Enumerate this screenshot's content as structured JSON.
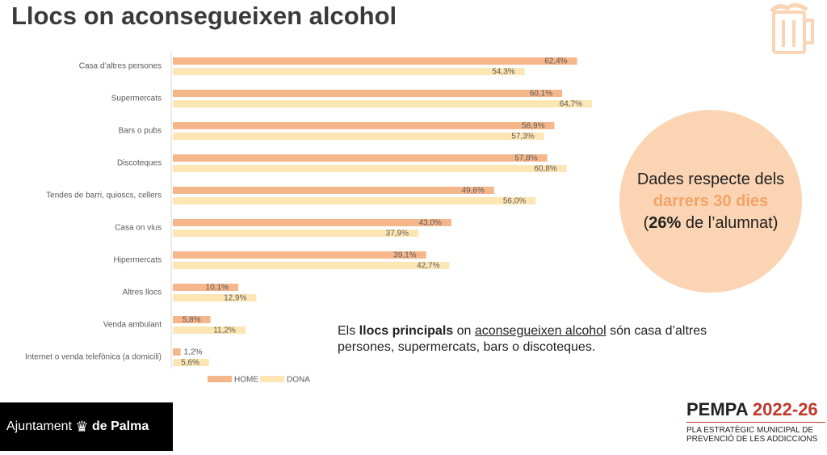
{
  "title": "Llocs on aconsegueixen alcohol",
  "chart_data": {
    "type": "hbar",
    "categories": [
      "Casa d’altres persones",
      "Supermercats",
      "Bars o pubs",
      "Discoteques",
      "Tendes de barri, quioscs, cellers",
      "Casa on vius",
      "Hipermercats",
      "Altres llocs",
      "Venda ambulant",
      "Internet o venda telefònica (a domicili)"
    ],
    "series": [
      {
        "name": "HOME",
        "color": "#f5b78a",
        "values": [
          62.4,
          60.1,
          58.9,
          57.8,
          49.6,
          43.0,
          39.1,
          10.1,
          5.8,
          1.2
        ],
        "value_labels": [
          "62,4%",
          "60,1%",
          "58,9%",
          "57,8%",
          "49,6%",
          "43,0%",
          "39,1%",
          "10,1%",
          "5,8%",
          "1,2%"
        ]
      },
      {
        "name": "DONA",
        "color": "#fde6b3",
        "values": [
          54.3,
          64.7,
          57.3,
          60.8,
          56.0,
          37.9,
          42.7,
          12.9,
          11.2,
          5.6
        ],
        "value_labels": [
          "54,3%",
          "64,7%",
          "57,3%",
          "60,8%",
          "56,0%",
          "37,9%",
          "42,7%",
          "12,9%",
          "11,2%",
          "5,6%"
        ]
      }
    ]
  },
  "callout": {
    "line1": "Dades respecte dels",
    "line2": "darrers 30 dies",
    "open": "(",
    "bold": "26%",
    "rest": " de l’alumnat)"
  },
  "note": {
    "t1": "Els ",
    "bold": "llocs principals",
    "t2": " on ",
    "underline": "aconsegueixen alcohol",
    "t3": " són casa d’altres persones, supermercats, bars o discoteques."
  },
  "footer": {
    "left": "Ajuntament",
    "left_bold": "de Palma",
    "brand": "PEMPA",
    "years": "2022-26",
    "sub1": "PLA ESTRATÈGIC MUNICIPAL DE",
    "sub2": "PREVENCIÓ DE LES ADDICCIONS"
  }
}
